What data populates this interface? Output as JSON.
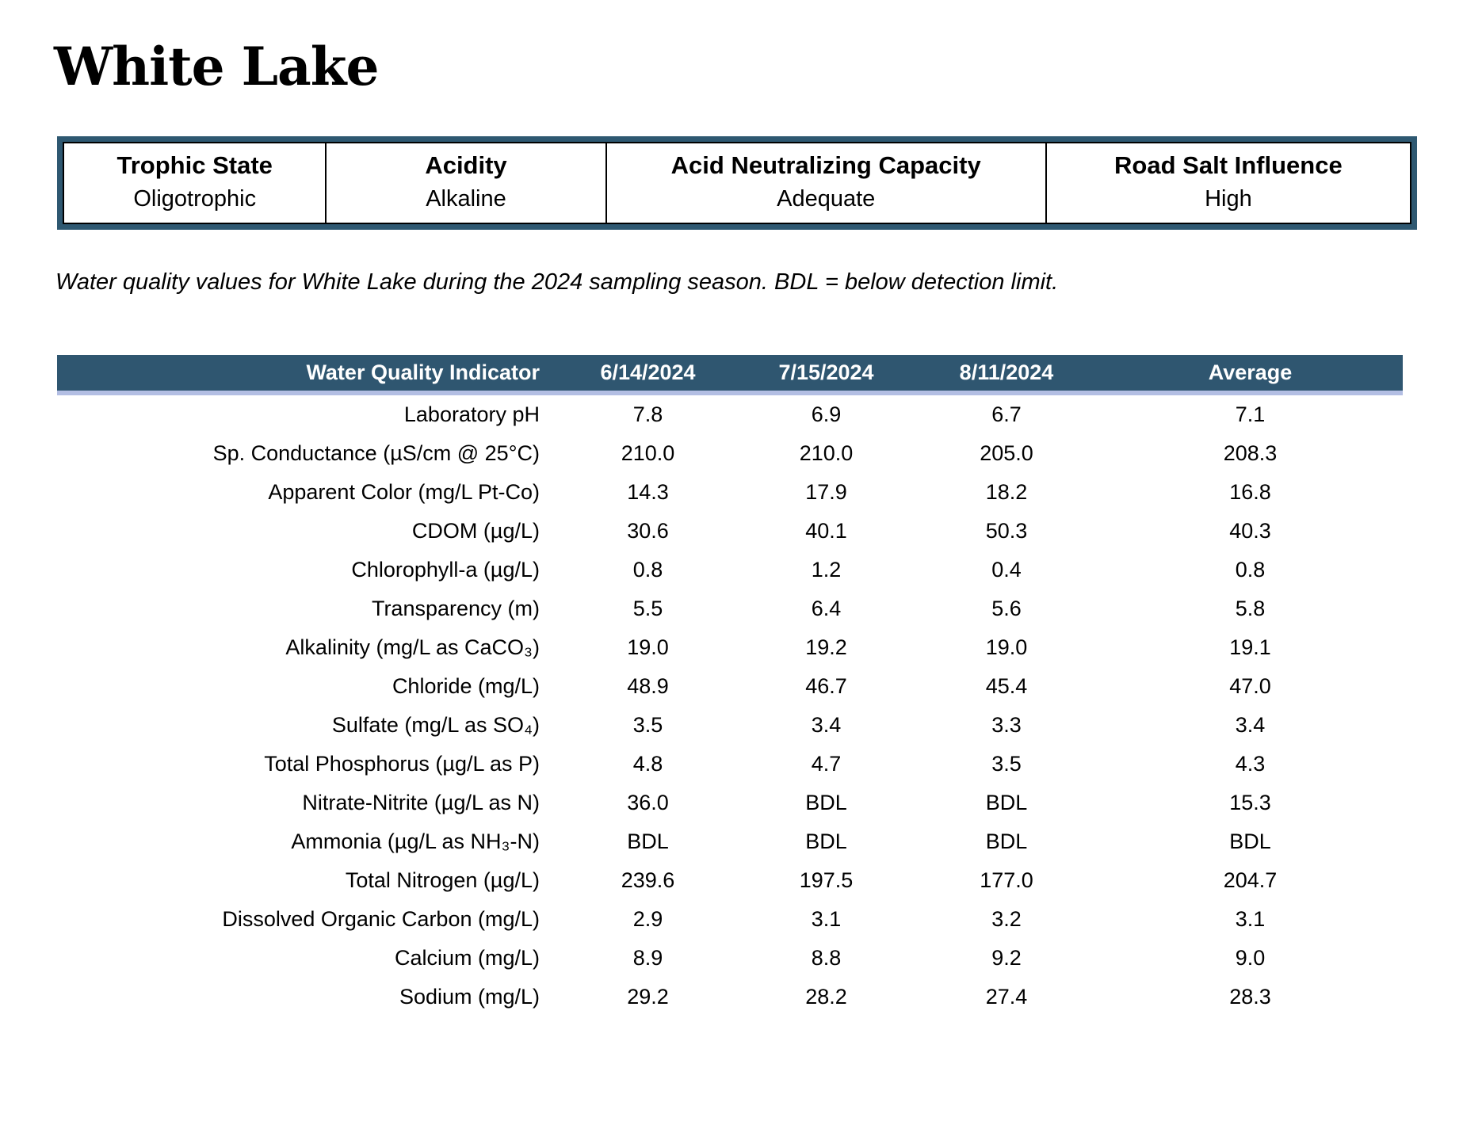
{
  "page": {
    "title": "White Lake"
  },
  "summary": {
    "columns": [
      {
        "label": "Trophic State",
        "value": "Oligotrophic"
      },
      {
        "label": "Acidity",
        "value": "Alkaline"
      },
      {
        "label": "Acid Neutralizing Capacity",
        "value": "Adequate"
      },
      {
        "label": "Road Salt Influence",
        "value": "High"
      }
    ]
  },
  "caption": "Water quality values for White Lake during the 2024 sampling season. BDL = below detection limit.",
  "table": {
    "headers": [
      "Water Quality Indicator",
      "6/14/2024",
      "7/15/2024",
      "8/11/2024",
      "Average"
    ],
    "rows": [
      {
        "indicator": "Laboratory pH",
        "values": [
          "7.8",
          "6.9",
          "6.7",
          "7.1"
        ]
      },
      {
        "indicator": "Sp. Conductance (µS/cm @ 25°C)",
        "values": [
          "210.0",
          "210.0",
          "205.0",
          "208.3"
        ]
      },
      {
        "indicator": "Apparent Color (mg/L Pt-Co)",
        "values": [
          "14.3",
          "17.9",
          "18.2",
          "16.8"
        ]
      },
      {
        "indicator": "CDOM (µg/L)",
        "values": [
          "30.6",
          "40.1",
          "50.3",
          "40.3"
        ]
      },
      {
        "indicator": "Chlorophyll-a (µg/L)",
        "values": [
          "0.8",
          "1.2",
          "0.4",
          "0.8"
        ]
      },
      {
        "indicator": "Transparency (m)",
        "values": [
          "5.5",
          "6.4",
          "5.6",
          "5.8"
        ]
      },
      {
        "indicator": "Alkalinity (mg/L as CaCO₃)",
        "values": [
          "19.0",
          "19.2",
          "19.0",
          "19.1"
        ]
      },
      {
        "indicator": "Chloride (mg/L)",
        "values": [
          "48.9",
          "46.7",
          "45.4",
          "47.0"
        ]
      },
      {
        "indicator": "Sulfate (mg/L as SO₄)",
        "values": [
          "3.5",
          "3.4",
          "3.3",
          "3.4"
        ]
      },
      {
        "indicator": "Total Phosphorus (µg/L as P)",
        "values": [
          "4.8",
          "4.7",
          "3.5",
          "4.3"
        ]
      },
      {
        "indicator": "Nitrate-Nitrite (µg/L as N)",
        "values": [
          "36.0",
          "BDL",
          "BDL",
          "15.3"
        ]
      },
      {
        "indicator": "Ammonia (µg/L as NH₃-N)",
        "values": [
          "BDL",
          "BDL",
          "BDL",
          "BDL"
        ]
      },
      {
        "indicator": "Total Nitrogen (µg/L)",
        "values": [
          "239.6",
          "197.5",
          "177.0",
          "204.7"
        ]
      },
      {
        "indicator": "Dissolved Organic Carbon (mg/L)",
        "values": [
          "2.9",
          "3.1",
          "3.2",
          "3.1"
        ]
      },
      {
        "indicator": "Calcium (mg/L)",
        "values": [
          "8.9",
          "8.8",
          "9.2",
          "9.0"
        ]
      },
      {
        "indicator": "Sodium (mg/L)",
        "values": [
          "29.2",
          "28.2",
          "27.4",
          "28.3"
        ]
      }
    ]
  },
  "colors": {
    "header_bar": "#2F5670",
    "header_underline": "#B3BEE3",
    "summary_border": "#2E5871"
  }
}
